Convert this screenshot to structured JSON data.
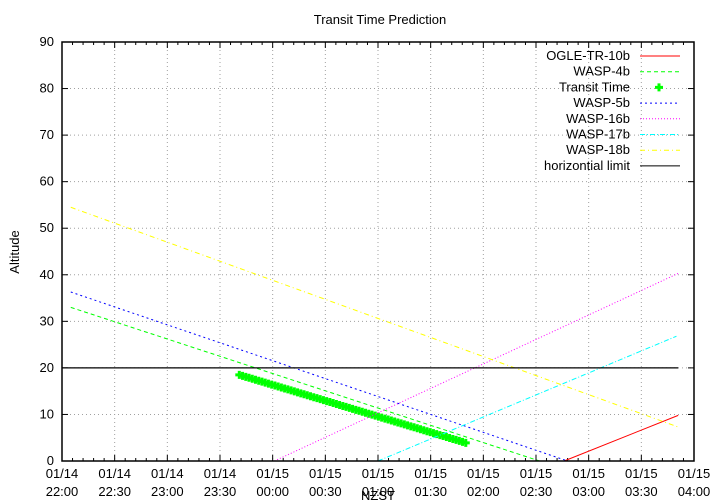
{
  "chart_data": {
    "type": "line",
    "title": "Transit Time Prediction",
    "xlabel": "NZST",
    "ylabel": "Altitude",
    "ylim": [
      0,
      90
    ],
    "yticks": [
      0,
      10,
      20,
      30,
      40,
      50,
      60,
      70,
      80,
      90
    ],
    "xlim_minutes": [
      0,
      360
    ],
    "xticks": [
      {
        "m": 0,
        "date": "01/14",
        "time": "22:00"
      },
      {
        "m": 30,
        "date": "01/14",
        "time": "22:30"
      },
      {
        "m": 60,
        "date": "01/14",
        "time": "23:00"
      },
      {
        "m": 90,
        "date": "01/14",
        "time": "23:30"
      },
      {
        "m": 120,
        "date": "01/15",
        "time": "00:00"
      },
      {
        "m": 150,
        "date": "01/15",
        "time": "00:30"
      },
      {
        "m": 180,
        "date": "01/15",
        "time": "01:00"
      },
      {
        "m": 210,
        "date": "01/15",
        "time": "01:30"
      },
      {
        "m": 240,
        "date": "01/15",
        "time": "02:00"
      },
      {
        "m": 270,
        "date": "01/15",
        "time": "02:30"
      },
      {
        "m": 300,
        "date": "01/15",
        "time": "03:00"
      },
      {
        "m": 330,
        "date": "01/15",
        "time": "03:30"
      },
      {
        "m": 360,
        "date": "01/15",
        "time": "04:00"
      }
    ],
    "grid": true,
    "legend_position": "top-right",
    "series": [
      {
        "name": "OGLE-TR-10b",
        "color": "#ff0000",
        "dash": "",
        "x_minutes": [
          286,
          351
        ],
        "y": [
          0,
          9.8
        ]
      },
      {
        "name": "WASP-4b",
        "color": "#00ff00",
        "dash": "4,3",
        "x_minutes": [
          5,
          272
        ],
        "y": [
          33,
          0
        ]
      },
      {
        "name": "Transit Time",
        "color": "#00ff00",
        "marker": "plus",
        "x_minutes": [
          101,
          230
        ],
        "y": [
          18.5,
          3.9
        ]
      },
      {
        "name": "WASP-5b",
        "color": "#0000ff",
        "dash": "2,3",
        "x_minutes": [
          5,
          288
        ],
        "y": [
          36.3,
          0
        ]
      },
      {
        "name": "WASP-16b",
        "color": "#ff00ff",
        "dash": "1,2",
        "x_minutes": [
          121,
          351
        ],
        "y": [
          0,
          40.3
        ]
      },
      {
        "name": "WASP-17b",
        "color": "#00ffff",
        "dash": "5,2,1,2",
        "x_minutes": [
          180,
          350
        ],
        "y": [
          0,
          26.8
        ]
      },
      {
        "name": "WASP-18b",
        "color": "#ffff00",
        "dash": "5,3,1,3",
        "x_minutes": [
          5,
          351
        ],
        "y": [
          54.5,
          7.3
        ]
      },
      {
        "name": "horizontial limit",
        "color": "#000000",
        "dash": "",
        "x_minutes": [
          0,
          351
        ],
        "y": [
          20,
          20
        ]
      }
    ]
  }
}
